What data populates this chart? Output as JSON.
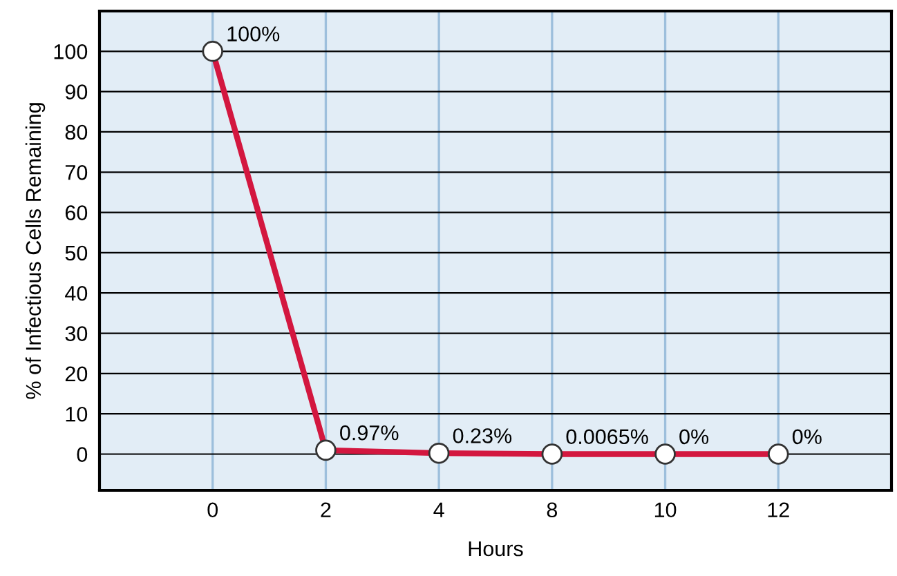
{
  "chart_data": {
    "type": "line",
    "xlabel": "Hours",
    "ylabel": "% of Infectious Cells Remaining",
    "categories": [
      "0",
      "2",
      "4",
      "8",
      "10",
      "12"
    ],
    "series": [
      {
        "color": "#d3173f",
        "values": [
          100,
          0.97,
          0.23,
          0.0065,
          0,
          0
        ],
        "value_labels": [
          "100%",
          "0.97%",
          "0.23%",
          "0.0065%",
          "0%",
          "0%"
        ]
      }
    ],
    "ylim": [
      -9,
      110
    ],
    "yticks": [
      0,
      10,
      20,
      30,
      40,
      50,
      60,
      70,
      80,
      90,
      100
    ],
    "grid": true,
    "marker": "circle",
    "line_style": "solid",
    "legend": false
  }
}
